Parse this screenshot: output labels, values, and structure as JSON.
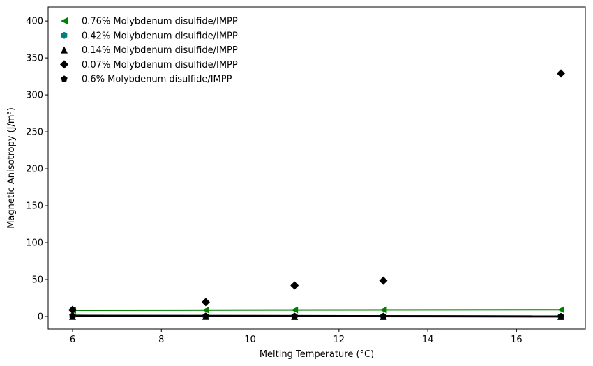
{
  "chart_data": {
    "type": "scatter",
    "xlabel": "Melting Temperature (°C)",
    "ylabel": "Magnetic Anisotropy (J/m³)",
    "xlim": [
      5.45,
      17.55
    ],
    "ylim": [
      -17,
      419
    ],
    "x_ticks": [
      6,
      8,
      10,
      12,
      14,
      16
    ],
    "y_ticks": [
      0,
      50,
      100,
      150,
      200,
      250,
      300,
      350,
      400
    ],
    "legend_position": "top-left",
    "grid": false,
    "series": [
      {
        "name": "0.76% Molybdenum disulfide/IMPP",
        "marker": "triangle-left",
        "color": "#008000",
        "x": [
          6,
          9,
          11,
          13,
          17
        ],
        "y": [
          8.5,
          8.7,
          8.8,
          8.9,
          9.2
        ],
        "fit_line": [
          8.5,
          9.2
        ]
      },
      {
        "name": "0.42% Molybdenum disulfide/IMPP",
        "marker": "hexagon",
        "color": "#008080",
        "x": [
          6,
          9,
          11,
          13,
          17
        ],
        "y": [
          0.4,
          0.3,
          0.3,
          0.3,
          0.2
        ],
        "fit_line": null
      },
      {
        "name": "0.14% Molybdenum disulfide/IMPP",
        "marker": "triangle-up",
        "color": "#000000",
        "x": [
          6,
          9,
          11,
          13,
          17
        ],
        "y": [
          0.2,
          0.2,
          0.1,
          0.1,
          0.1
        ],
        "fit_line": null
      },
      {
        "name": "0.07% Molybdenum disulfide/IMPP",
        "marker": "diamond",
        "color": "#000000",
        "x": [
          6,
          9,
          11,
          13,
          17
        ],
        "y": [
          9,
          19.5,
          42,
          48.5,
          329
        ],
        "fit_line": null
      },
      {
        "name": "0.6% Molybdenum disulfide/IMPP",
        "marker": "pentagon",
        "color": "#000000",
        "x": [
          6,
          9,
          11,
          13,
          17
        ],
        "y": [
          1,
          0.7,
          0.5,
          0.3,
          0.1
        ],
        "fit_line": [
          1,
          0.1
        ]
      }
    ]
  }
}
